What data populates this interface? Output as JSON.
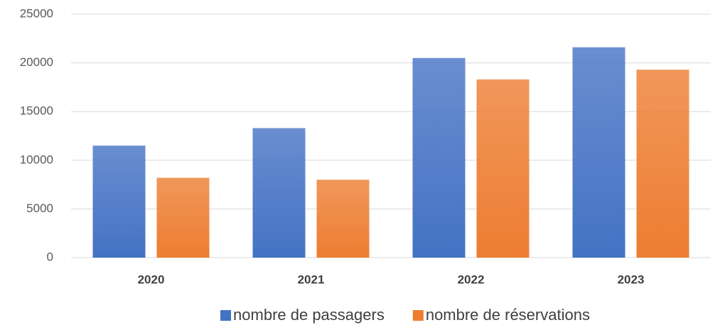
{
  "chart_data": {
    "type": "bar",
    "categories": [
      "2020",
      "2021",
      "2022",
      "2023"
    ],
    "series": [
      {
        "name": "nombre de passagers",
        "color": "#4472c4",
        "values": [
          11500,
          13300,
          20500,
          21600
        ]
      },
      {
        "name": "nombre de réservations",
        "color": "#ed7d31",
        "values": [
          8200,
          8000,
          18300,
          19300
        ]
      }
    ],
    "ylim": [
      0,
      25000
    ],
    "yticks": [
      0,
      5000,
      10000,
      15000,
      20000,
      25000
    ],
    "grid": true,
    "legend": "bottom"
  }
}
